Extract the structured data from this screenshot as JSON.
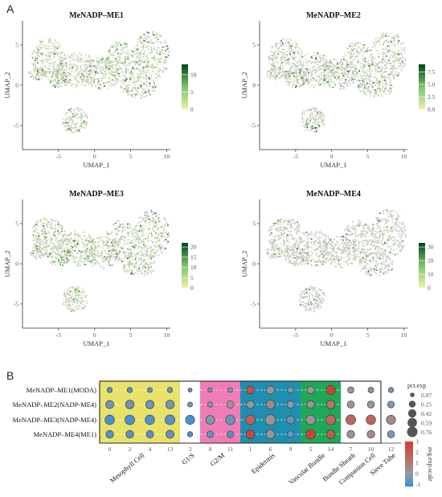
{
  "panel_labels": [
    "A",
    "B"
  ],
  "colors": {
    "umap_low": "#e8f2a8",
    "umap_mid": "#7dc36b",
    "umap_high": "#00441b",
    "umap_grey": "#c8c8c8",
    "dot_low": "#3a8fd8",
    "dot_mid": "#9a9a9a",
    "dot_high": "#d93a2b",
    "group_mesophyll": "#e8e26a",
    "group_g1s": "#ffffff",
    "group_g2m": "#f07cb6",
    "group_epidermis": "#1f8fb0",
    "group_vascular": "#1ea858",
    "group_others": "#ffffff"
  },
  "chart_data": [
    {
      "type": "scatter",
      "subtype": "umap_feature_plot",
      "title": "MeNADP–ME1",
      "xlabel": "UMAP_1",
      "ylabel": "UMAP_2",
      "xticks": [
        "-5",
        "0",
        "5",
        "10"
      ],
      "yticks": [
        "5",
        "0",
        "-5"
      ],
      "xlim": [
        -10,
        10.5
      ],
      "ylim": [
        -8,
        8
      ],
      "colorbar": {
        "ticks": [
          "10",
          "5",
          "0"
        ],
        "min": 0,
        "max": 13
      }
    },
    {
      "type": "scatter",
      "subtype": "umap_feature_plot",
      "title": "MeNADP–ME2",
      "xlabel": "UMAP_1",
      "ylabel": "UMAP_2",
      "xticks": [
        "-5",
        "0",
        "5",
        "10"
      ],
      "yticks": [
        "5",
        "0",
        "-5"
      ],
      "xlim": [
        -10,
        10.5
      ],
      "ylim": [
        -8,
        8
      ],
      "colorbar": {
        "ticks": [
          "7.5",
          "5.0",
          "2.5",
          "0.0"
        ],
        "min": 0,
        "max": 9
      }
    },
    {
      "type": "scatter",
      "subtype": "umap_feature_plot",
      "title": "MeNADP–ME3",
      "xlabel": "UMAP_1",
      "ylabel": "UMAP_2",
      "xticks": [
        "-5",
        "0",
        "5",
        "10"
      ],
      "yticks": [
        "5",
        "0",
        "-5"
      ],
      "xlim": [
        -10,
        10.5
      ],
      "ylim": [
        -8,
        8
      ],
      "colorbar": {
        "ticks": [
          "20",
          "15",
          "10",
          "5",
          "0"
        ],
        "min": 0,
        "max": 22
      }
    },
    {
      "type": "scatter",
      "subtype": "umap_feature_plot",
      "title": "MeNADP–ME4",
      "xlabel": "UMAP_1",
      "ylabel": "UMAP_2",
      "xticks": [
        "-5",
        "0",
        "5",
        "10"
      ],
      "yticks": [
        "5",
        "0",
        "-5"
      ],
      "xlim": [
        -10,
        10.5
      ],
      "ylim": [
        -8,
        8
      ],
      "colorbar": {
        "ticks": [
          "30",
          "20",
          "10",
          "0"
        ],
        "min": 0,
        "max": 33
      }
    },
    {
      "type": "dot_plot",
      "rows": [
        "MeNADP–ME1(MODA)",
        "MeNADP–ME2(NADP-ME4)",
        "MeNADP–ME3(NADP-ME4)",
        "MeNADP–ME4(ME1)"
      ],
      "clusters": [
        "0",
        "2",
        "4",
        "13",
        "3",
        "8",
        "11",
        "1",
        "6",
        "9",
        "5",
        "14",
        "7",
        "10",
        "12"
      ],
      "groups": [
        {
          "name": "Mesophyll Cell",
          "clusters": [
            "0",
            "2",
            "4",
            "13"
          ],
          "color_key": "group_mesophyll"
        },
        {
          "name": "G1/S",
          "clusters": [
            "3"
          ],
          "color_key": "group_g1s"
        },
        {
          "name": "G2/M",
          "clusters": [
            "8",
            "11"
          ],
          "color_key": "group_g2m"
        },
        {
          "name": "Epidermis",
          "clusters": [
            "1",
            "6",
            "9"
          ],
          "color_key": "group_epidermis"
        },
        {
          "name": "Vascular Bundle",
          "clusters": [
            "5",
            "14"
          ],
          "color_key": "group_vascular"
        },
        {
          "name": "Bundle Sheath",
          "clusters": [
            "7"
          ],
          "color_key": "group_others"
        },
        {
          "name": "Companion Cell",
          "clusters": [
            "10"
          ],
          "color_key": "group_others"
        },
        {
          "name": "Sieve Tube",
          "clusters": [
            "12"
          ],
          "color_key": "group_others"
        }
      ],
      "pct_exp": [
        [
          0.12,
          0.12,
          0.1,
          0.12,
          0.05,
          0.07,
          0.1,
          0.35,
          0.4,
          0.2,
          0.3,
          0.55,
          0.2,
          0.15,
          0.12
        ],
        [
          0.4,
          0.45,
          0.42,
          0.45,
          0.1,
          0.12,
          0.3,
          0.35,
          0.5,
          0.3,
          0.35,
          0.45,
          0.3,
          0.28,
          0.25
        ],
        [
          0.6,
          0.62,
          0.6,
          0.65,
          0.55,
          0.5,
          0.62,
          0.6,
          0.76,
          0.4,
          0.6,
          0.66,
          0.66,
          0.6,
          0.55
        ],
        [
          0.35,
          0.35,
          0.32,
          0.4,
          0.12,
          0.25,
          0.25,
          0.45,
          0.5,
          0.25,
          0.6,
          0.45,
          0.35,
          0.35,
          0.3
        ]
      ],
      "avg_exp_scale": [
        [
          -0.8,
          -0.8,
          -0.8,
          -0.6,
          -1.0,
          -0.5,
          -0.4,
          2.4,
          0.2,
          -0.4,
          0.2,
          2.8,
          0.2,
          0.4,
          -0.5
        ],
        [
          -0.5,
          -0.5,
          -0.5,
          -0.4,
          -0.6,
          -0.2,
          0.1,
          0.0,
          0.6,
          -0.1,
          0.4,
          1.2,
          0.0,
          0.2,
          -0.3
        ],
        [
          -1.0,
          -1.0,
          -0.9,
          -0.8,
          -1.0,
          -0.3,
          -0.6,
          1.8,
          0.3,
          -0.6,
          0.3,
          1.6,
          1.6,
          1.7,
          0.6
        ],
        [
          -0.9,
          -0.8,
          -0.8,
          -0.7,
          -0.9,
          -0.7,
          -0.8,
          2.6,
          0.2,
          -0.6,
          2.8,
          2.0,
          0.3,
          0.5,
          -0.3
        ]
      ],
      "size_legend": {
        "title": "pct.exp",
        "values": [
          "0.07",
          "0.25",
          "0.42",
          "0.59",
          "0.76"
        ]
      },
      "color_legend": {
        "title": "avg.exp.scale",
        "ticks": [
          "3",
          "2",
          "1",
          "0",
          "-1"
        ],
        "min": -1.2,
        "max": 3
      }
    }
  ]
}
